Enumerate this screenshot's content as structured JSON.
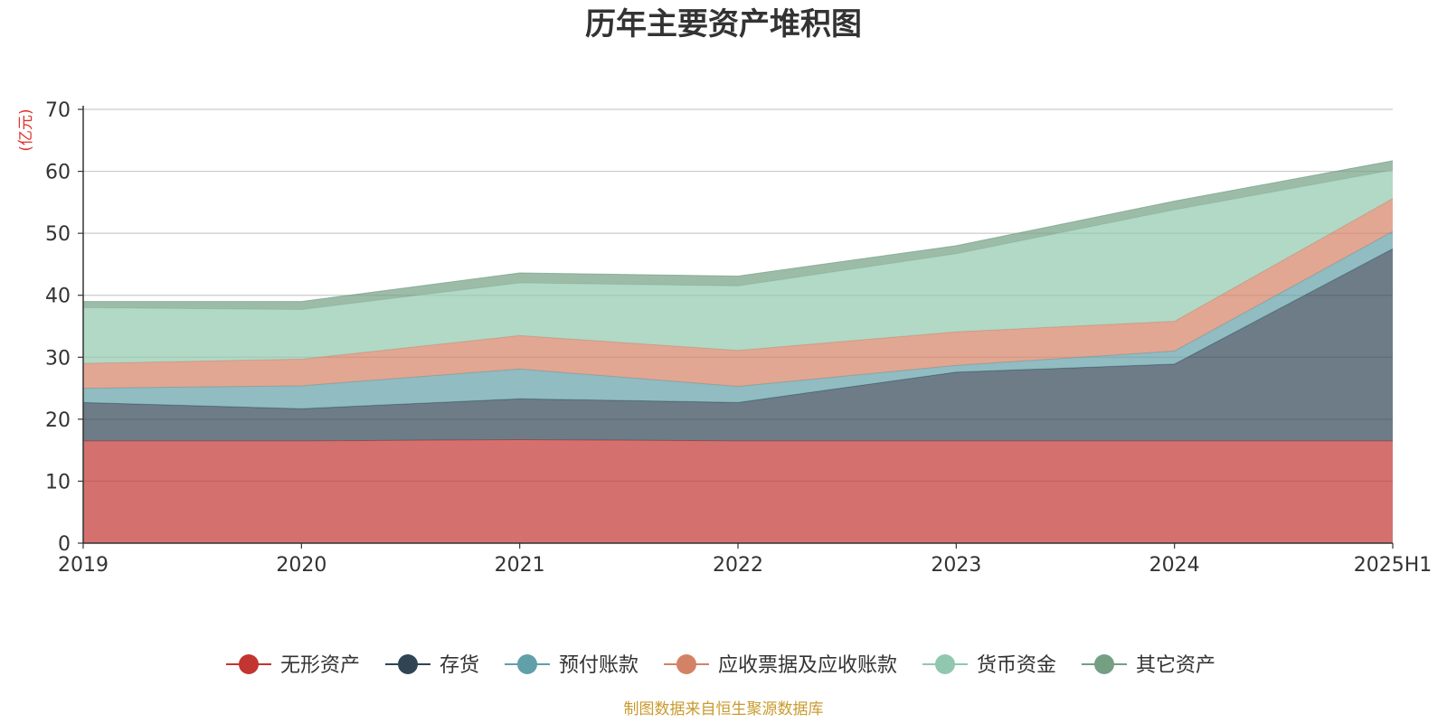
{
  "chart_data": {
    "type": "area",
    "stacked": true,
    "title": "历年主要资产堆积图",
    "unit": "(亿元)",
    "categories": [
      "2019",
      "2020",
      "2021",
      "2022",
      "2023",
      "2024",
      "2025H1"
    ],
    "ylim": [
      0,
      70
    ],
    "yticks": [
      0,
      10,
      20,
      30,
      40,
      50,
      60,
      70
    ],
    "grid": true,
    "legend_position": "bottom",
    "series": [
      {
        "name": "无形资产",
        "color": "#c23531",
        "values": [
          16.5,
          16.5,
          16.7,
          16.5,
          16.5,
          16.5,
          16.5
        ]
      },
      {
        "name": "存货",
        "color": "#2f4554",
        "values": [
          6.2,
          5.2,
          6.6,
          6.2,
          11.1,
          12.4,
          31.0
        ]
      },
      {
        "name": "预付账款",
        "color": "#61a0a8",
        "values": [
          2.3,
          3.7,
          4.8,
          2.6,
          1.1,
          2.1,
          2.8
        ]
      },
      {
        "name": "应收票据及应收账款",
        "color": "#d48265",
        "values": [
          4.0,
          4.3,
          5.4,
          5.8,
          5.4,
          4.8,
          5.3
        ]
      },
      {
        "name": "货币资金",
        "color": "#91c7ae",
        "values": [
          9.0,
          8.0,
          8.5,
          10.4,
          12.6,
          18.0,
          4.6
        ]
      },
      {
        "name": "其它资产",
        "color": "#749f83",
        "values": [
          1.0,
          1.3,
          1.6,
          1.6,
          1.3,
          1.4,
          1.5
        ]
      }
    ],
    "source": "制图数据来自恒生聚源数据库"
  }
}
